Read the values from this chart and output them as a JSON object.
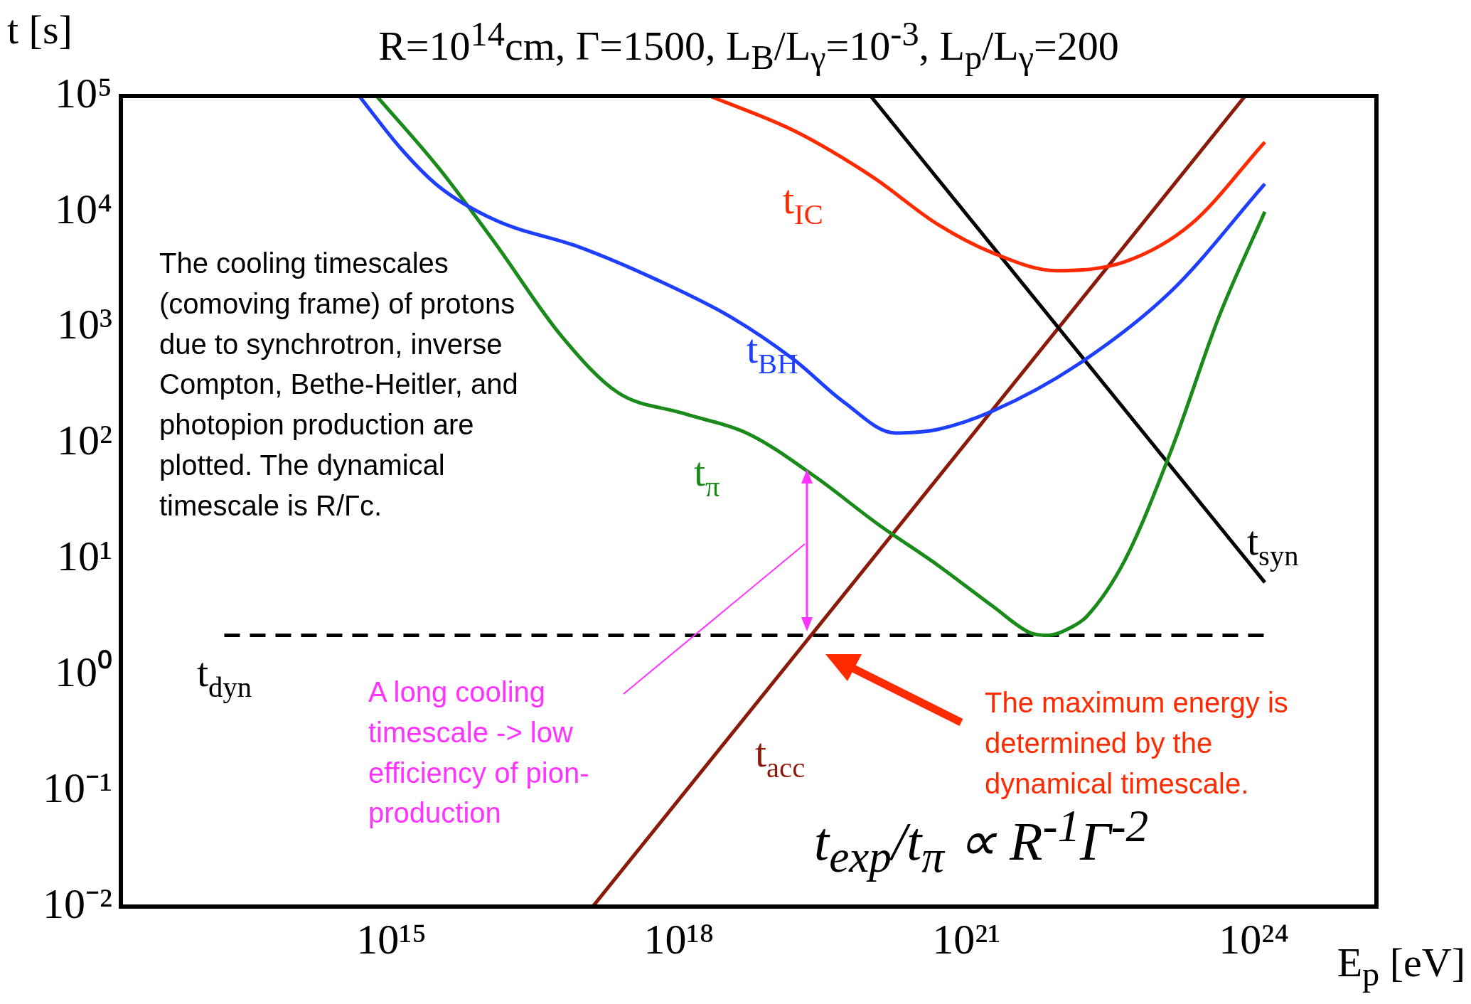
{
  "chart_data": {
    "type": "line",
    "title": "R=10$^{14}$cm, Γ=1500, L$_{B}$/L$_{γ}$=10$^{-3}$, L$_{p}$/L$_{γ}$=200",
    "xlabel": "E$_{p}$ [eV]",
    "ylabel": "t [s]",
    "log": "xy",
    "grid": false,
    "legend": false,
    "marker": "none",
    "xlim": [
      1500000000000.0,
      1.9e+25
    ],
    "ylim": [
      0.01,
      100000
    ],
    "xticks": [
      {
        "value": 1000000000000000.0,
        "label": "10¹⁵"
      },
      {
        "value": 1e+18,
        "label": "10¹⁸"
      },
      {
        "value": 1e+21,
        "label": "10²¹"
      },
      {
        "value": 1e+24,
        "label": "10²⁴"
      }
    ],
    "yticks": [
      {
        "value": 0.01,
        "label": "10⁻²"
      },
      {
        "value": 0.1,
        "label": "10⁻¹"
      },
      {
        "value": 1,
        "label": "10⁰"
      },
      {
        "value": 10,
        "label": "10¹"
      },
      {
        "value": 100,
        "label": "10²"
      },
      {
        "value": 1000,
        "label": "10³"
      },
      {
        "value": 10000,
        "label": "10⁴"
      },
      {
        "value": 100000,
        "label": "10⁵"
      }
    ],
    "series": [
      {
        "name": "t$_{IC}$",
        "color": "#ff2a00",
        "x": [
          2.1e+18,
          1.6e+19,
          1.05e+20,
          5e+20,
          1.9e+21,
          8.7e+21,
          4.5e+22,
          2.2e+23,
          1.3e+24
        ],
        "values": [
          100000,
          50000,
          20000,
          7800,
          4400,
          3100,
          3700,
          7800,
          40000
        ]
      },
      {
        "name": "t$_{BH}$",
        "color": "#1f3fff",
        "x": [
          460000000000000.0,
          1260000000000000.0,
          3100000000000000.0,
          1.2e+16,
          9.5e+16,
          5.8e+17,
          3.5e+18,
          1.6e+19,
          5.2e+19,
          1.8e+20,
          5e+20,
          1.9e+21,
          1.45e+22,
          1.4e+23,
          1.3e+24
        ],
        "values": [
          100000,
          35000,
          16600,
          8500,
          4900,
          2600,
          1230,
          525,
          229,
          123,
          132,
          191,
          479,
          2100,
          17400
        ]
      },
      {
        "name": "t$_{π}$",
        "color": "#1a8a1a",
        "x": [
          700000000000000.0,
          3100000000000000.0,
          1.2e+16,
          5.9e+16,
          2.3e+17,
          1.1e+18,
          5.4e+18,
          2.6e+19,
          1.2e+20,
          5e+20,
          1.9e+21,
          4.7e+21,
          7e+21,
          1.26e+22,
          1.8e+22,
          4.5e+22,
          1.4e+23,
          4.3e+23,
          1.3e+24
        ],
        "values": [
          100000,
          24000,
          5400,
          851,
          275,
          182,
          120,
          52,
          20,
          8.9,
          3.9,
          2.3,
          2.2,
          2.6,
          3.2,
          9.8,
          91,
          1230,
          10000
        ]
      },
      {
        "name": "t$_{syn}$",
        "color": "#000000",
        "x": [
          1e+20,
          1.3e+24
        ],
        "values": [
          100000,
          6.3
        ]
      },
      {
        "name": "t$_{acc}$",
        "color": "#8b1a0a",
        "x": [
          1.26e+17,
          8.1e+23
        ],
        "values": [
          0.01,
          100000
        ]
      },
      {
        "name": "t$_{dyn}$",
        "color": "#000000",
        "line_style": "dashed",
        "x": [
          18000000000000.0,
          1.3e+24
        ],
        "values": [
          2.2,
          2.2
        ]
      }
    ],
    "annotations": [
      "The cooling timescales (comoving frame) of protons due to synchrotron, inverse Compton, Bethe-Heitler, and photopion production are plotted. The dynamical timescale is R/Γc.",
      "A long cooling timescale -> low efficiency of pion-production",
      "The maximum energy is determined by the dynamical timescale.",
      "t$_{exp}$/t$_{π}$ ∝ R$^{-1}$Γ$^{-2}$"
    ]
  }
}
